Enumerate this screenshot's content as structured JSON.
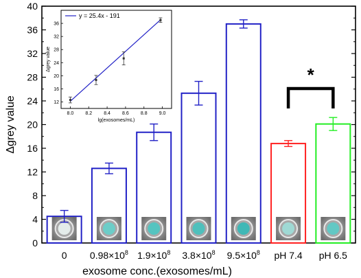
{
  "chart_data": [
    {
      "type": "bar",
      "xlabel": "exosome conc.(exosomes/mL)",
      "ylabel": "Δgrey value",
      "ylim": [
        0,
        40
      ],
      "yticks": [
        "0",
        "4",
        "8",
        "12",
        "16",
        "20",
        "24",
        "28",
        "32",
        "36",
        "40"
      ],
      "grid": false,
      "categories": [
        "0",
        "0.98×10",
        "1.9×10",
        "3.8×10",
        "9.5×10",
        "pH 7.4",
        "pH 6.5"
      ],
      "category_superscripts": [
        "",
        "8",
        "8",
        "8",
        "8",
        "",
        ""
      ],
      "values": [
        4.5,
        12.6,
        18.7,
        25.3,
        37.0,
        16.8,
        20.1
      ],
      "errors": [
        1.0,
        0.9,
        1.4,
        2.0,
        0.7,
        0.5,
        1.1
      ],
      "colors": [
        "#2121c6",
        "#2121c6",
        "#2121c6",
        "#2121c6",
        "#2121c6",
        "#ff2020",
        "#22ee22"
      ],
      "significance": {
        "between": [
          "pH 7.4",
          "pH 6.5"
        ],
        "marker": "*"
      }
    },
    {
      "type": "line",
      "inset": true,
      "xlabel": "lg(exosomes/mL)",
      "ylabel": "Δgrey value",
      "xlim": [
        7.9,
        9.1
      ],
      "ylim": [
        10,
        40
      ],
      "xticks": [
        "8.0",
        "8.2",
        "8.4",
        "8.6",
        "8.8",
        "9.0"
      ],
      "yticks": [
        "12",
        "16",
        "20",
        "24",
        "28",
        "32",
        "36",
        "40"
      ],
      "legend": {
        "label": "y = 25.4x - 191",
        "position": "top-left"
      },
      "points": [
        {
          "x": 8.0,
          "y": 12.6,
          "err": 0.9
        },
        {
          "x": 8.28,
          "y": 18.7,
          "err": 1.4
        },
        {
          "x": 8.58,
          "y": 25.3,
          "err": 2.0
        },
        {
          "x": 8.98,
          "y": 37.0,
          "err": 0.7
        }
      ],
      "fit": {
        "slope": 25.4,
        "intercept": -191,
        "x_range": [
          8.0,
          8.98
        ]
      },
      "color": "#2121c6"
    }
  ],
  "well_images": [
    {
      "color": "#e4ecea"
    },
    {
      "color": "#6ccdc8"
    },
    {
      "color": "#55c4c0"
    },
    {
      "color": "#4fc0bc"
    },
    {
      "color": "#3fb8b6"
    },
    {
      "color": "#9fd9d4"
    },
    {
      "color": "#62c8c4"
    }
  ]
}
